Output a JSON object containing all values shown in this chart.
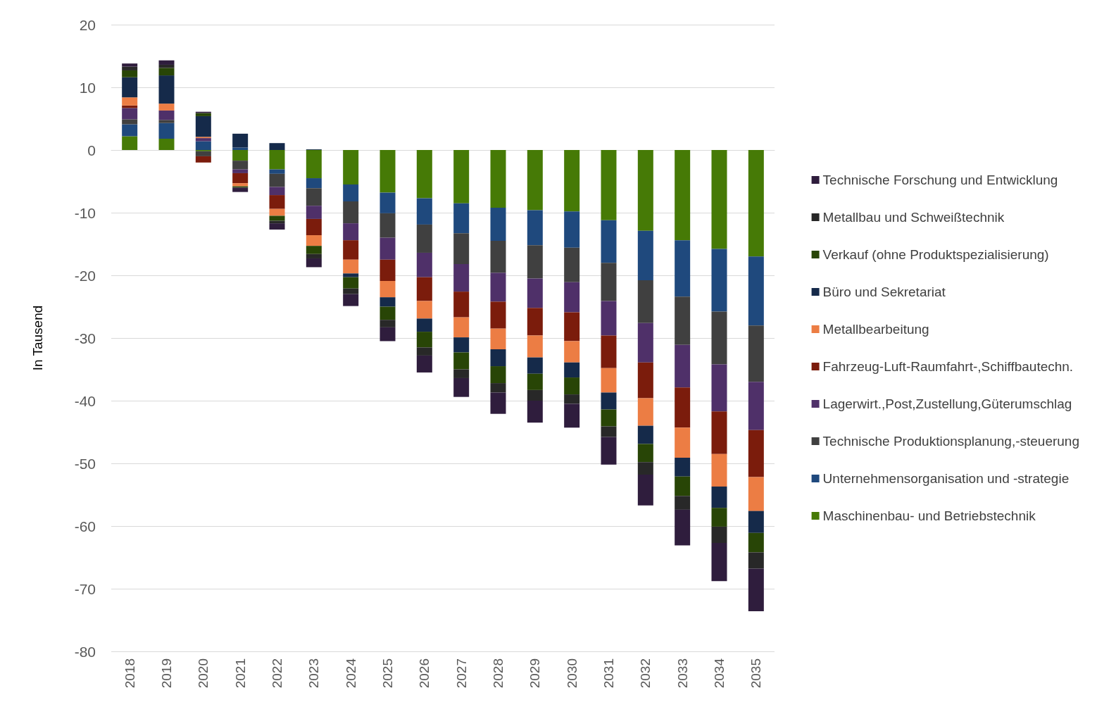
{
  "chart_data": {
    "type": "bar",
    "stacked": true,
    "ylabel": "In Tausend",
    "categories": [
      "2018",
      "2019",
      "2020",
      "2021",
      "2022",
      "2023",
      "2024",
      "2025",
      "2026",
      "2027",
      "2028",
      "2029",
      "2030",
      "2031",
      "2032",
      "2033",
      "2034",
      "2035"
    ],
    "ylim": [
      -80,
      20
    ],
    "yticks": [
      -80,
      -70,
      -60,
      -50,
      -40,
      -30,
      -20,
      -10,
      0,
      10,
      20
    ],
    "grid": "y",
    "legend": "right",
    "series": [
      {
        "name": "Maschinenbau- und Betriebstechnik",
        "color": "#467a06",
        "values": [
          2.2,
          1.8,
          -0.2,
          -1.7,
          -3.1,
          -4.5,
          -5.5,
          -6.8,
          -7.7,
          -8.5,
          -9.2,
          -9.6,
          -9.8,
          -11.2,
          -12.9,
          -14.4,
          -15.8,
          -17.0
        ]
      },
      {
        "name": "Unternehmensorganisation und -strategie",
        "color": "#1f497d",
        "values": [
          1.9,
          2.5,
          1.4,
          0.4,
          -0.7,
          -1.6,
          -2.7,
          -3.3,
          -4.2,
          -4.8,
          -5.3,
          -5.6,
          -5.8,
          -6.8,
          -7.9,
          -9.0,
          -10.0,
          -11.0
        ]
      },
      {
        "name": "Technische Produktionsplanung,-steuerung",
        "color": "#404040",
        "values": [
          0.8,
          0.5,
          -0.8,
          -1.4,
          -2.1,
          -2.8,
          -3.5,
          -3.9,
          -4.5,
          -4.9,
          -5.1,
          -5.3,
          -5.5,
          -6.1,
          -6.8,
          -7.7,
          -8.4,
          -9.0
        ]
      },
      {
        "name": "Lagerwirt.,Post,Zustellung,Güterumschlag",
        "color": "#4f3069",
        "values": [
          1.8,
          1.5,
          0.5,
          -0.6,
          -1.3,
          -2.1,
          -2.7,
          -3.5,
          -3.9,
          -4.4,
          -4.6,
          -4.7,
          -4.8,
          -5.5,
          -6.3,
          -6.8,
          -7.5,
          -7.7
        ]
      },
      {
        "name": "Fahrzeug-Luft-Raumfahrt-,Schiffbautechn.",
        "color": "#7b1c0c",
        "values": [
          0.4,
          0,
          -1.0,
          -1.6,
          -2.2,
          -2.6,
          -3.1,
          -3.4,
          -3.8,
          -4.1,
          -4.3,
          -4.4,
          -4.6,
          -5.2,
          -5.7,
          -6.4,
          -6.8,
          -7.5
        ]
      },
      {
        "name": "Metallbearbeitung",
        "color": "#ec7d44",
        "values": [
          1.3,
          1.1,
          0.2,
          -0.5,
          -1.1,
          -1.7,
          -2.2,
          -2.6,
          -2.8,
          -3.2,
          -3.3,
          -3.5,
          -3.4,
          -3.9,
          -4.4,
          -4.8,
          -5.2,
          -5.4
        ]
      },
      {
        "name": "Büro und Sekretariat",
        "color": "#152a4a",
        "values": [
          3.2,
          4.5,
          3.3,
          2.2,
          1.1,
          0.1,
          -0.6,
          -1.5,
          -2.1,
          -2.4,
          -2.7,
          -2.6,
          -2.4,
          -2.7,
          -2.9,
          -3.0,
          -3.4,
          -3.5
        ]
      },
      {
        "name": "Verkauf (ohne Produktspezialisierung)",
        "color": "#284506",
        "values": [
          1.1,
          1.2,
          0.5,
          -0.2,
          -0.8,
          -1.3,
          -1.8,
          -2.1,
          -2.5,
          -2.7,
          -2.7,
          -2.6,
          -2.7,
          -2.7,
          -2.9,
          -3.1,
          -3.0,
          -3.1
        ]
      },
      {
        "name": "Metallbau und Schweißtechnik",
        "color": "#282828",
        "values": [
          0.6,
          0.5,
          0,
          0,
          -0.4,
          -0.7,
          -0.9,
          -1.2,
          -1.3,
          -1.4,
          -1.5,
          -1.7,
          -1.5,
          -1.7,
          -2.0,
          -2.2,
          -2.6,
          -2.6
        ]
      },
      {
        "name": "Technische Forschung und Entwicklung",
        "color": "#2f1d3d",
        "values": [
          0.5,
          0.7,
          0.2,
          -0.7,
          -1.0,
          -1.4,
          -1.9,
          -2.2,
          -2.7,
          -3.0,
          -3.4,
          -3.5,
          -3.8,
          -4.4,
          -4.9,
          -5.7,
          -6.1,
          -6.8
        ]
      }
    ]
  }
}
